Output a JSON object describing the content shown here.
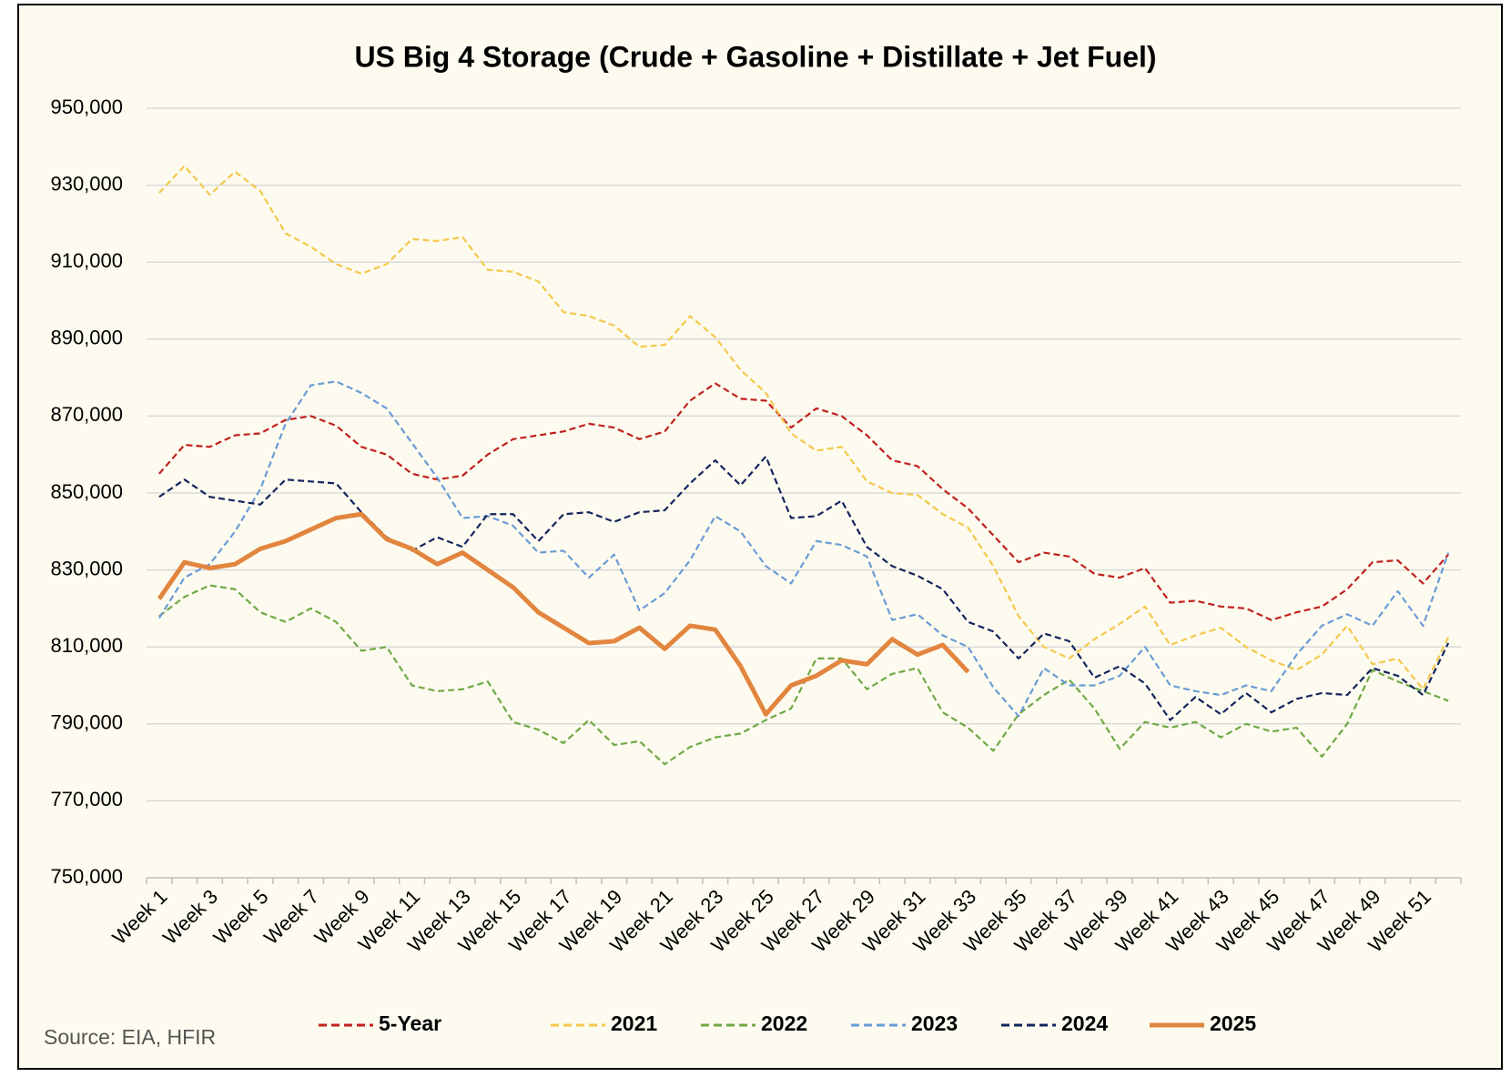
{
  "chart_data": {
    "type": "line",
    "title": "US Big 4 Storage (Crude + Gasoline + Distillate + Jet Fuel)",
    "source": "Source: EIA, HFIR",
    "categories": [
      "Week 1",
      null,
      "Week 3",
      null,
      "Week 5",
      null,
      "Week 7",
      null,
      "Week 9",
      null,
      "Week 11",
      null,
      "Week 13",
      null,
      "Week 15",
      null,
      "Week 17",
      null,
      "Week 19",
      null,
      "Week 21",
      null,
      "Week 23",
      null,
      "Week 25",
      null,
      "Week 27",
      null,
      "Week 29",
      null,
      "Week 31",
      null,
      "Week 33",
      null,
      "Week 35",
      null,
      "Week 37",
      null,
      "Week 39",
      null,
      "Week 41",
      null,
      "Week 43",
      null,
      "Week 45",
      null,
      "Week 47",
      null,
      "Week 49",
      null,
      "Week 51",
      null
    ],
    "ylim": [
      750000,
      950000
    ],
    "yticks": [
      {
        "value": 750000,
        "label": "750,000"
      },
      {
        "value": 770000,
        "label": "770,000"
      },
      {
        "value": 790000,
        "label": "790,000"
      },
      {
        "value": 810000,
        "label": "810,000"
      },
      {
        "value": 830000,
        "label": "830,000"
      },
      {
        "value": 850000,
        "label": "850,000"
      },
      {
        "value": 870000,
        "label": "870,000"
      },
      {
        "value": 890000,
        "label": "890,000"
      },
      {
        "value": 910000,
        "label": "910,000"
      },
      {
        "value": 930000,
        "label": "930,000"
      },
      {
        "value": 950000,
        "label": "950,000"
      }
    ],
    "grid": true,
    "legend": "bottom",
    "series": [
      {
        "name": "5-Year",
        "color": "#c0201e",
        "line_style": "dashed",
        "values": [
          855000,
          862500,
          862000,
          865000,
          865500,
          869000,
          870000,
          867500,
          862000,
          860000,
          855000,
          853500,
          854500,
          860000,
          864000,
          865000,
          866000,
          868000,
          867000,
          864000,
          866000,
          874000,
          878500,
          874500,
          874000,
          867000,
          872000,
          870000,
          865000,
          858500,
          857000,
          851000,
          846000,
          839000,
          832000,
          834500,
          833500,
          829000,
          828000,
          830500,
          821500,
          822000,
          820500,
          820000,
          817000,
          819000,
          820500,
          825000,
          832000,
          832500,
          826500,
          834000
        ]
      },
      {
        "name": "2021",
        "color": "#f5c84c",
        "line_style": "dashed",
        "values": [
          928000,
          935000,
          927500,
          933500,
          928500,
          917500,
          914000,
          909500,
          907000,
          909500,
          916000,
          915500,
          916500,
          908000,
          907500,
          905000,
          897000,
          896000,
          893500,
          888000,
          888500,
          896000,
          890500,
          882000,
          876000,
          865500,
          861000,
          862000,
          853000,
          850000,
          849500,
          844500,
          841000,
          831000,
          818000,
          810000,
          807000,
          812000,
          816000,
          820500,
          810500,
          813000,
          815000,
          810000,
          806500,
          804000,
          808000,
          815500,
          805500,
          807000,
          799000,
          812500
        ]
      },
      {
        "name": "2022",
        "color": "#70a846",
        "line_style": "dashed",
        "values": [
          818000,
          823000,
          826000,
          825000,
          819000,
          816500,
          820000,
          816500,
          809000,
          810000,
          800000,
          798500,
          799000,
          801000,
          790500,
          788500,
          785000,
          791000,
          784500,
          785500,
          779500,
          784000,
          786500,
          787500,
          791000,
          794000,
          807000,
          807000,
          799000,
          803000,
          804500,
          793000,
          789000,
          783000,
          792500,
          797500,
          801500,
          794000,
          783500,
          790500,
          789000,
          790500,
          786500,
          790000,
          788000,
          789000,
          781500,
          790000,
          804000,
          801000,
          798500,
          796000
        ]
      },
      {
        "name": "2023",
        "color": "#6a9bd6",
        "line_style": "dashed",
        "values": [
          817500,
          828000,
          831500,
          840000,
          851000,
          868000,
          878000,
          879000,
          876000,
          872000,
          863000,
          854000,
          843500,
          844000,
          841500,
          834500,
          835000,
          828000,
          834000,
          819500,
          824000,
          832500,
          844000,
          840000,
          831000,
          826500,
          837500,
          836500,
          833500,
          817000,
          818500,
          813000,
          810000,
          799500,
          792000,
          804500,
          800000,
          800000,
          802500,
          810000,
          800000,
          798500,
          797500,
          800000,
          798500,
          808000,
          815500,
          818500,
          815500,
          824500,
          815500,
          834500
        ]
      },
      {
        "name": "2024",
        "color": "#14245e",
        "line_style": "dashed",
        "values": [
          849000,
          853500,
          849000,
          848000,
          847000,
          853500,
          853000,
          852500,
          845000,
          838500,
          835000,
          838500,
          836000,
          844500,
          844500,
          837500,
          844500,
          845000,
          842500,
          845000,
          845500,
          852500,
          858500,
          852000,
          859500,
          843500,
          844000,
          848000,
          836000,
          831000,
          828500,
          825000,
          816500,
          814000,
          807000,
          813500,
          811500,
          802000,
          805000,
          800500,
          791000,
          797000,
          792500,
          798000,
          793000,
          796500,
          798000,
          797500,
          804500,
          802500,
          797500,
          811000
        ]
      },
      {
        "name": "2025",
        "color": "#e2853f",
        "line_style": "solid",
        "values": [
          822500,
          832000,
          830500,
          831500,
          835500,
          837500,
          840500,
          843500,
          844500,
          838000,
          835500,
          831500,
          834500,
          830000,
          825500,
          819000,
          815000,
          811000,
          811500,
          815000,
          809500,
          815500,
          814500,
          805000,
          792500,
          800000,
          802500,
          806500,
          805500,
          812000,
          808000,
          810500,
          803500,
          null,
          null,
          null,
          null,
          null,
          null,
          null,
          null,
          null,
          null,
          null,
          null,
          null,
          null,
          null,
          null,
          null,
          null,
          null
        ]
      }
    ]
  }
}
